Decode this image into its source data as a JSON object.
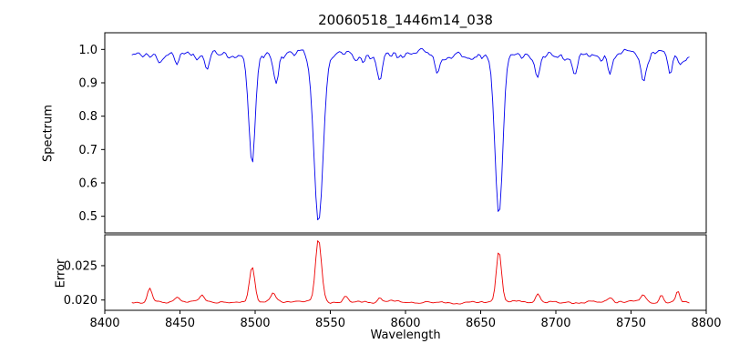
{
  "figure": {
    "background": "#ffffff",
    "axis_color": "#000000"
  },
  "chart_data": {
    "type": "line",
    "title": "20060518_1446m14_038",
    "xlabel": "Wavelength",
    "x_range": [
      8400,
      8800
    ],
    "x_ticks": [
      8400,
      8450,
      8500,
      8550,
      8600,
      8650,
      8700,
      8750,
      8800
    ],
    "x_tick_labels": [
      "8400",
      "8450",
      "8500",
      "8550",
      "8600",
      "8650",
      "8700",
      "8750",
      "8800"
    ],
    "sample_range": [
      8418,
      8790
    ],
    "sample_step": 1.2,
    "noise_seed": 20060518,
    "grid": false,
    "legend": null,
    "panels": [
      {
        "name": "spectrum",
        "ylabel": "Spectrum",
        "ylim": [
          0.45,
          1.05
        ],
        "y_ticks": [
          0.5,
          0.6,
          0.7,
          0.8,
          0.9,
          1.0
        ],
        "y_tick_labels": [
          "0.5",
          "0.6",
          "0.7",
          "0.8",
          "0.9",
          "1.0"
        ],
        "color": "#0000ee",
        "series": {
          "name": "spectrum",
          "continuum": 0.985,
          "noise_amplitude": 0.025,
          "downward_noise_factor": 1.5,
          "absorption_lines": [
            {
              "center": 8498.0,
              "depth": 0.32,
              "width": 2.2
            },
            {
              "center": 8542.1,
              "depth": 0.5,
              "width": 3.0
            },
            {
              "center": 8662.1,
              "depth": 0.49,
              "width": 2.6
            },
            {
              "center": 8448.0,
              "depth": 0.045,
              "width": 1.5
            },
            {
              "center": 8468.0,
              "depth": 0.05,
              "width": 1.5
            },
            {
              "center": 8514.0,
              "depth": 0.07,
              "width": 1.6
            },
            {
              "center": 8583.0,
              "depth": 0.08,
              "width": 1.8
            },
            {
              "center": 8621.0,
              "depth": 0.05,
              "width": 1.5
            },
            {
              "center": 8688.0,
              "depth": 0.08,
              "width": 1.7
            },
            {
              "center": 8713.0,
              "depth": 0.05,
              "width": 1.5
            },
            {
              "center": 8736.0,
              "depth": 0.06,
              "width": 1.5
            },
            {
              "center": 8758.0,
              "depth": 0.08,
              "width": 1.6
            },
            {
              "center": 8776.0,
              "depth": 0.05,
              "width": 1.4
            }
          ]
        }
      },
      {
        "name": "error",
        "ylabel": "Error",
        "ylim": [
          0.0185,
          0.0295
        ],
        "y_ticks": [
          0.02,
          0.025
        ],
        "y_tick_labels": [
          "0.020",
          "0.025"
        ],
        "color": "#ee0000",
        "series": {
          "name": "error",
          "baseline": 0.0197,
          "noise_amplitude": 0.0004,
          "peaks": [
            {
              "center": 8430.0,
              "height": 0.002,
              "width": 1.5
            },
            {
              "center": 8448.0,
              "height": 0.0008,
              "width": 1.5
            },
            {
              "center": 8465.0,
              "height": 0.001,
              "width": 1.5
            },
            {
              "center": 8498.0,
              "height": 0.0053,
              "width": 1.8
            },
            {
              "center": 8512.0,
              "height": 0.0012,
              "width": 1.5
            },
            {
              "center": 8542.1,
              "height": 0.0091,
              "width": 2.0
            },
            {
              "center": 8560.0,
              "height": 0.0008,
              "width": 1.5
            },
            {
              "center": 8583.0,
              "height": 0.0007,
              "width": 1.5
            },
            {
              "center": 8662.1,
              "height": 0.0075,
              "width": 1.8
            },
            {
              "center": 8688.0,
              "height": 0.0012,
              "width": 1.5
            },
            {
              "center": 8736.0,
              "height": 0.0006,
              "width": 1.5
            },
            {
              "center": 8758.0,
              "height": 0.001,
              "width": 1.5
            },
            {
              "center": 8770.0,
              "height": 0.0012,
              "width": 1.4
            },
            {
              "center": 8781.0,
              "height": 0.0015,
              "width": 1.3
            }
          ]
        }
      }
    ]
  }
}
